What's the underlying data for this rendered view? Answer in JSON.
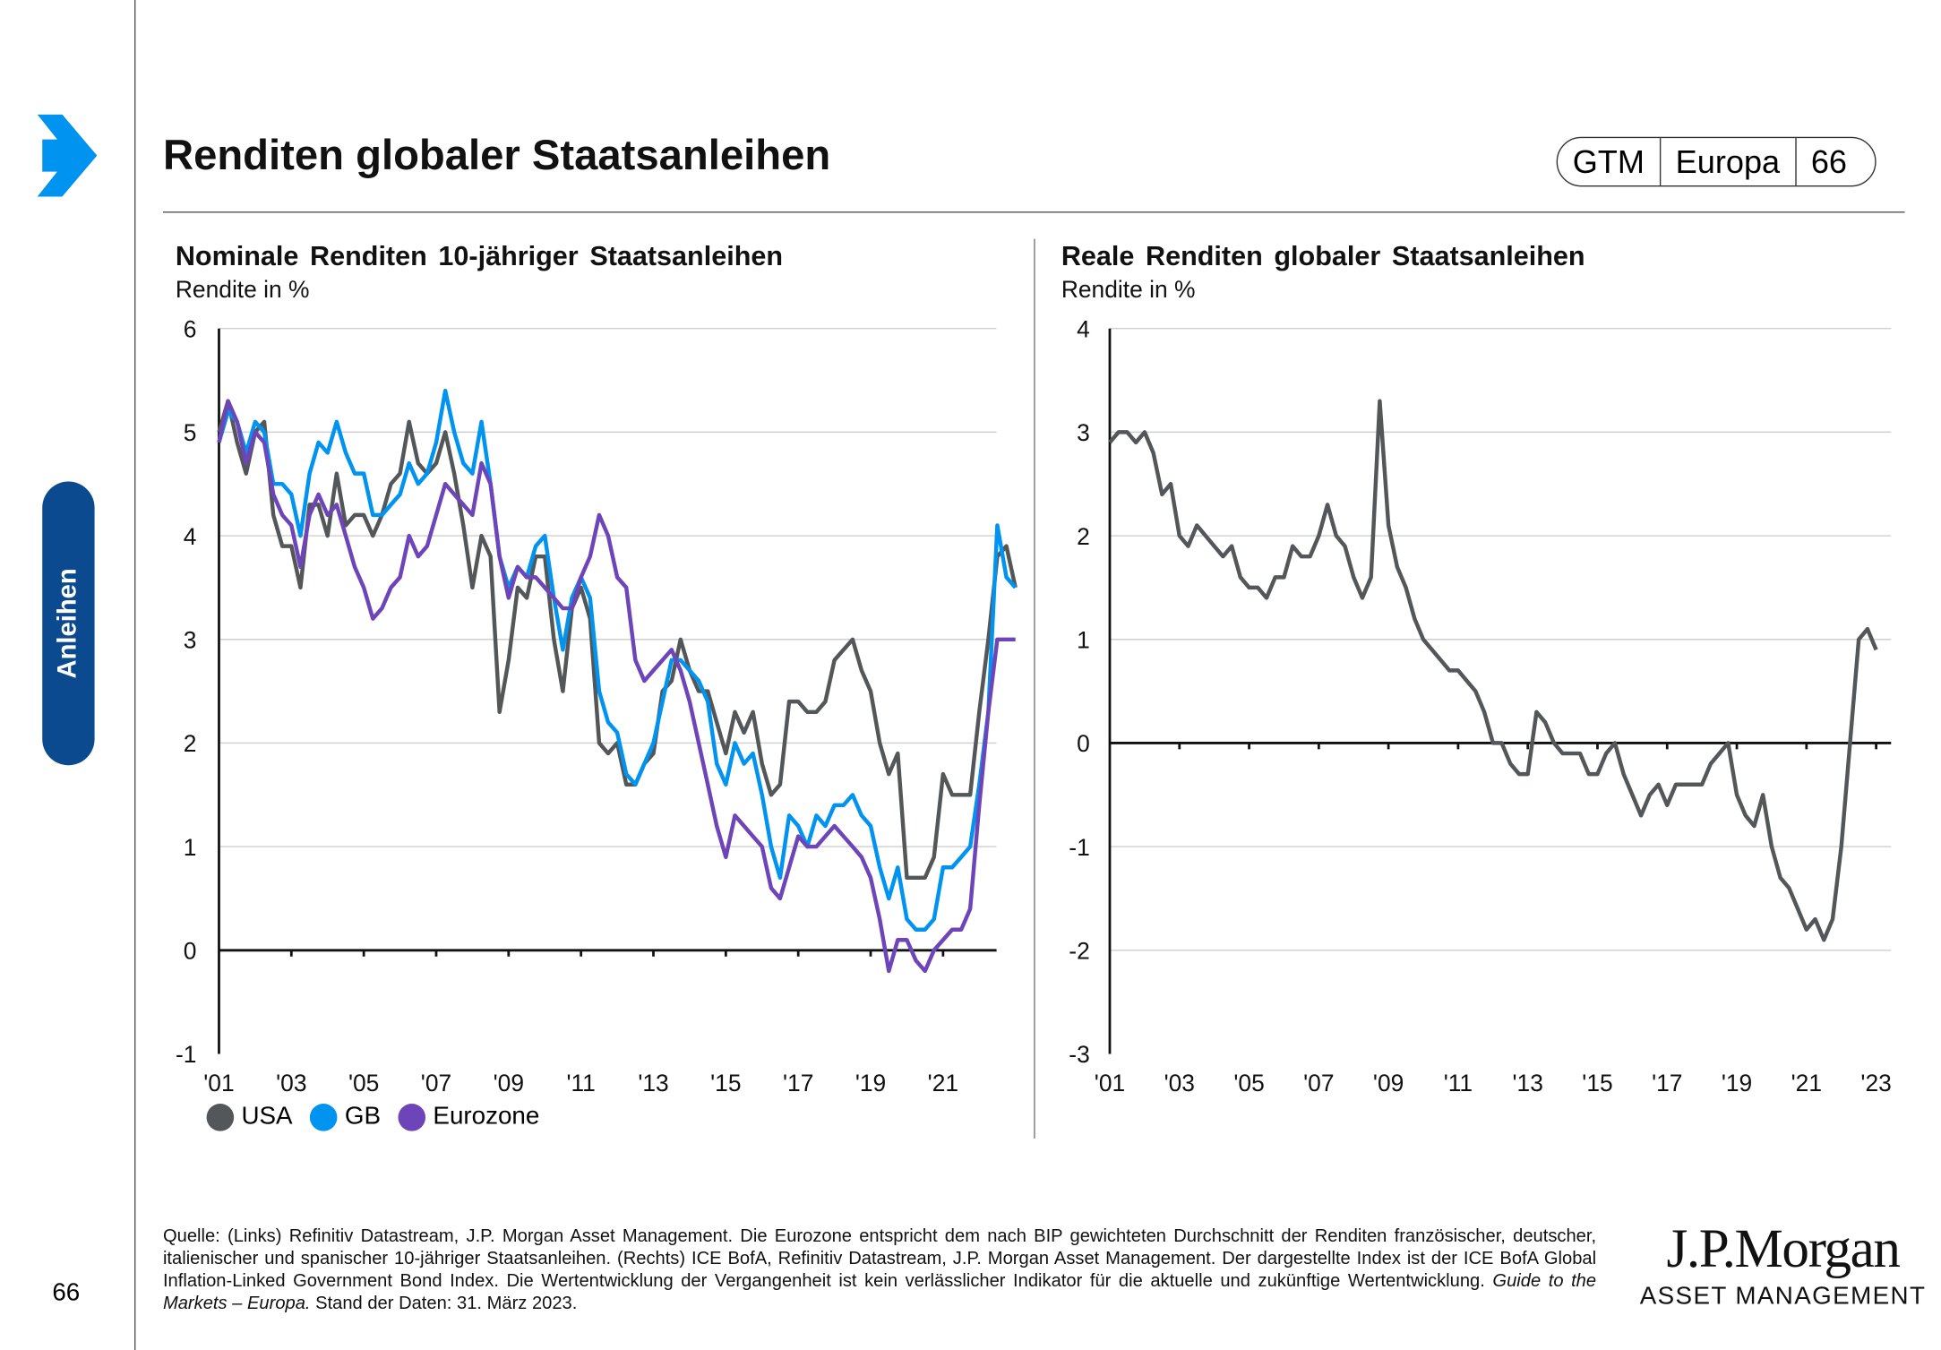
{
  "header": {
    "title": "Renditen globaler Staatsanleihen",
    "badge": [
      "GTM",
      "Europa",
      "66"
    ]
  },
  "side": {
    "tab_label": "Anleihen",
    "page_number": "66"
  },
  "footnote": {
    "text": "Quelle: (Links) Refinitiv Datastream, J.P. Morgan Asset Management. Die Eurozone entspricht dem nach BIP gewichteten Durchschnitt der Renditen französischer, deutscher, italienischer und spanischer 10-jähriger Staatsanleihen. (Rechts) ICE BofA, Refinitiv Datastream, J.P. Morgan Asset Management. Der dargestellte Index ist der ICE BofA Global Inflation-Linked Government Bond Index. Die Wertentwicklung der Vergangenheit ist kein verlässlicher Indikator für die aktuelle und zukünftige Wertentwicklung. ",
    "italic": "Guide to the Markets – Europa.",
    "tail": " Stand der Daten: 31. März 2023."
  },
  "logo": {
    "line1": "J.P.Morgan",
    "line2": "ASSET MANAGEMENT"
  },
  "chart_data": [
    {
      "type": "line",
      "title": "Nominale Renditen 10-jähriger Staatsanleihen",
      "ylabel": "Rendite in %",
      "ylim": [
        -1,
        6
      ],
      "yticks": [
        6,
        5,
        4,
        3,
        2,
        1,
        0,
        -1
      ],
      "x_start": 2001,
      "x_step": 0.25,
      "xticks": [
        "'01",
        "'03",
        "'05",
        "'07",
        "'09",
        "'11",
        "'13",
        "'15",
        "'17",
        "'19",
        "'21"
      ],
      "grid": true,
      "legend": "bottom-left",
      "series": [
        {
          "name": "USA",
          "color": "#53575a",
          "values": [
            5.0,
            5.3,
            4.9,
            4.6,
            5.0,
            5.1,
            4.2,
            3.9,
            3.9,
            3.5,
            4.3,
            4.3,
            4.0,
            4.6,
            4.1,
            4.2,
            4.2,
            4.0,
            4.2,
            4.5,
            4.6,
            5.1,
            4.7,
            4.6,
            4.7,
            5.0,
            4.6,
            4.1,
            3.5,
            4.0,
            3.8,
            2.3,
            2.8,
            3.5,
            3.4,
            3.8,
            3.8,
            3.0,
            2.5,
            3.3,
            3.5,
            3.2,
            2.0,
            1.9,
            2.0,
            1.6,
            1.6,
            1.8,
            1.9,
            2.5,
            2.6,
            3.0,
            2.7,
            2.5,
            2.5,
            2.2,
            1.9,
            2.3,
            2.1,
            2.3,
            1.8,
            1.5,
            1.6,
            2.4,
            2.4,
            2.3,
            2.3,
            2.4,
            2.8,
            2.9,
            3.0,
            2.7,
            2.5,
            2.0,
            1.7,
            1.9,
            0.7,
            0.7,
            0.7,
            0.9,
            1.7,
            1.5,
            1.5,
            1.5,
            2.3,
            3.0,
            3.8,
            3.9,
            3.5
          ]
        },
        {
          "name": "GB",
          "color": "#0093f0",
          "values": [
            4.9,
            5.2,
            5.1,
            4.8,
            5.1,
            5.0,
            4.5,
            4.5,
            4.4,
            4.0,
            4.6,
            4.9,
            4.8,
            5.1,
            4.8,
            4.6,
            4.6,
            4.2,
            4.2,
            4.3,
            4.4,
            4.7,
            4.5,
            4.6,
            4.9,
            5.4,
            5.0,
            4.7,
            4.6,
            5.1,
            4.5,
            3.8,
            3.5,
            3.7,
            3.6,
            3.9,
            4.0,
            3.4,
            2.9,
            3.4,
            3.6,
            3.4,
            2.5,
            2.2,
            2.1,
            1.7,
            1.6,
            1.8,
            2.0,
            2.4,
            2.8,
            2.8,
            2.7,
            2.6,
            2.4,
            1.8,
            1.6,
            2.0,
            1.8,
            1.9,
            1.5,
            1.0,
            0.7,
            1.3,
            1.2,
            1.0,
            1.3,
            1.2,
            1.4,
            1.4,
            1.5,
            1.3,
            1.2,
            0.8,
            0.5,
            0.8,
            0.3,
            0.2,
            0.2,
            0.3,
            0.8,
            0.8,
            0.9,
            1.0,
            1.6,
            2.3,
            4.1,
            3.6,
            3.5
          ]
        },
        {
          "name": "Eurozone",
          "color": "#6e45b8",
          "values": [
            4.9,
            5.3,
            5.1,
            4.7,
            5.0,
            4.9,
            4.4,
            4.2,
            4.1,
            3.7,
            4.2,
            4.4,
            4.2,
            4.3,
            4.0,
            3.7,
            3.5,
            3.2,
            3.3,
            3.5,
            3.6,
            4.0,
            3.8,
            3.9,
            4.2,
            4.5,
            4.4,
            4.3,
            4.2,
            4.7,
            4.5,
            3.8,
            3.4,
            3.7,
            3.6,
            3.6,
            3.5,
            3.4,
            3.3,
            3.3,
            3.6,
            3.8,
            4.2,
            4.0,
            3.6,
            3.5,
            2.8,
            2.6,
            2.7,
            2.8,
            2.9,
            2.7,
            2.4,
            2.0,
            1.6,
            1.2,
            0.9,
            1.3,
            1.2,
            1.1,
            1.0,
            0.6,
            0.5,
            0.8,
            1.1,
            1.0,
            1.0,
            1.1,
            1.2,
            1.1,
            1.0,
            0.9,
            0.7,
            0.3,
            -0.2,
            0.1,
            0.1,
            -0.1,
            -0.2,
            0.0,
            0.1,
            0.2,
            0.2,
            0.4,
            1.4,
            2.3,
            3.0,
            3.0,
            3.0
          ]
        }
      ]
    },
    {
      "type": "line",
      "title": "Reale Renditen globaler Staatsanleihen",
      "ylabel": "Rendite in %",
      "ylim": [
        -3,
        4
      ],
      "yticks": [
        4,
        3,
        2,
        1,
        0,
        -1,
        -2,
        -3
      ],
      "x_start": 2001,
      "x_step": 0.25,
      "xticks": [
        "'01",
        "'03",
        "'05",
        "'07",
        "'09",
        "'11",
        "'13",
        "'15",
        "'17",
        "'19",
        "'21",
        "'23"
      ],
      "grid": true,
      "series": [
        {
          "name": "Real",
          "color": "#53575a",
          "values": [
            2.9,
            3.0,
            3.0,
            2.9,
            3.0,
            2.8,
            2.4,
            2.5,
            2.0,
            1.9,
            2.1,
            2.0,
            1.9,
            1.8,
            1.9,
            1.6,
            1.5,
            1.5,
            1.4,
            1.6,
            1.6,
            1.9,
            1.8,
            1.8,
            2.0,
            2.3,
            2.0,
            1.9,
            1.6,
            1.4,
            1.6,
            3.3,
            2.1,
            1.7,
            1.5,
            1.2,
            1.0,
            0.9,
            0.8,
            0.7,
            0.7,
            0.6,
            0.5,
            0.3,
            0.0,
            0.0,
            -0.2,
            -0.3,
            -0.3,
            0.3,
            0.2,
            0.0,
            -0.1,
            -0.1,
            -0.1,
            -0.3,
            -0.3,
            -0.1,
            0.0,
            -0.3,
            -0.5,
            -0.7,
            -0.5,
            -0.4,
            -0.6,
            -0.4,
            -0.4,
            -0.4,
            -0.4,
            -0.2,
            -0.1,
            0.0,
            -0.5,
            -0.7,
            -0.8,
            -0.5,
            -1.0,
            -1.3,
            -1.4,
            -1.6,
            -1.8,
            -1.7,
            -1.9,
            -1.7,
            -1.0,
            0.0,
            1.0,
            1.1,
            0.9
          ]
        }
      ]
    }
  ]
}
